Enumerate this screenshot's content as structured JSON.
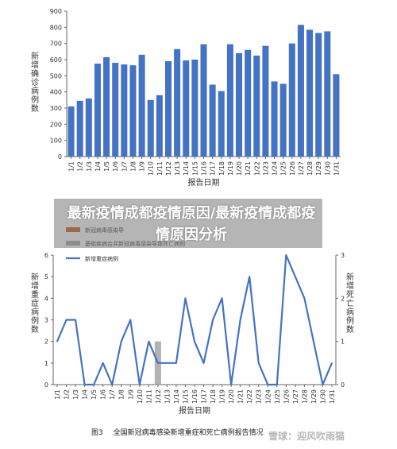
{
  "banner": {
    "title": "最新疫情成都疫情原因/最新疫情成都疫情原因分析"
  },
  "caption": {
    "figure": "图3",
    "text": "全国新冠病毒感染新增重症和死亡病例报告情况"
  },
  "watermark": "雪球：迎风吹雨猫",
  "chart_data": [
    {
      "type": "bar",
      "xlabel": "报告日期",
      "ylabel": "新增确诊病例数",
      "ylim": [
        0,
        900
      ],
      "yticks": [
        0,
        100,
        200,
        300,
        400,
        500,
        600,
        700,
        800,
        900
      ],
      "grid": false,
      "color": "#4472C4",
      "categories": [
        "1/1",
        "1/2",
        "1/3",
        "1/4",
        "1/5",
        "1/6",
        "1/7",
        "1/8",
        "1/9",
        "1/10",
        "1/11",
        "1/12",
        "1/13",
        "1/14",
        "1/15",
        "1/16",
        "1/17",
        "1/18",
        "1/19",
        "1/20",
        "1/21",
        "1/22",
        "1/23",
        "1/24",
        "1/25",
        "1/26",
        "1/27",
        "1/28",
        "1/29",
        "1/30",
        "1/31"
      ],
      "values": [
        310,
        345,
        360,
        575,
        615,
        580,
        570,
        565,
        630,
        350,
        380,
        590,
        665,
        595,
        600,
        695,
        445,
        405,
        695,
        640,
        660,
        625,
        685,
        465,
        450,
        700,
        815,
        785,
        765,
        775,
        510
      ]
    },
    {
      "type": "line",
      "xlabel": "报告日期",
      "ylabel": "新增重症病例数",
      "y2label": "新增死亡病例数",
      "ylim": [
        0,
        6
      ],
      "yticks": [
        0,
        1,
        2,
        3,
        4,
        5,
        6
      ],
      "y2lim": [
        0,
        3
      ],
      "y2ticks": [
        0,
        1,
        2,
        3
      ],
      "legend": [
        "新冠病毒感染导",
        "基础疾病合并新冠病毒感染导致死亡病例",
        "新增重症病例"
      ],
      "categories": [
        "1/1",
        "1/2",
        "1/3",
        "1/4",
        "1/5",
        "1/6",
        "1/7",
        "1/8",
        "1/9",
        "1/10",
        "1/11",
        "1/12",
        "1/13",
        "1/14",
        "1/15",
        "1/16",
        "1/17",
        "1/18",
        "1/19",
        "1/20",
        "1/21",
        "1/22",
        "1/23",
        "1/24",
        "1/25",
        "1/26",
        "1/27",
        "1/28",
        "1/29",
        "1/30",
        "1/31"
      ],
      "series": [
        {
          "name": "新增重症病例",
          "color": "#4472C4",
          "values": [
            2,
            3,
            3,
            0,
            0,
            1,
            0,
            2,
            3,
            0,
            2,
            1,
            1,
            1,
            4,
            2,
            1,
            3,
            4,
            0,
            3,
            5,
            1,
            0,
            0,
            6,
            5,
            4,
            2,
            0,
            1
          ]
        },
        {
          "name": "新冠病毒感染导",
          "color": "#C55A11",
          "values": [
            0,
            0,
            0,
            0,
            0,
            0,
            0,
            0,
            0,
            0,
            0,
            0,
            0,
            0,
            0,
            0,
            0,
            0,
            0,
            0,
            0,
            0,
            0,
            0,
            0,
            0,
            0,
            0,
            0,
            0,
            0
          ]
        },
        {
          "name": "基础疾病合并新冠病毒感染导致死亡病例",
          "color": "#A5A5A5",
          "values": [
            0,
            0,
            0,
            0,
            0,
            0,
            0,
            0,
            0,
            0,
            0,
            1,
            0,
            0,
            0,
            0,
            0,
            0,
            0,
            0,
            0,
            0,
            0,
            0,
            0,
            0,
            0,
            0,
            0,
            0,
            0
          ]
        }
      ]
    }
  ]
}
